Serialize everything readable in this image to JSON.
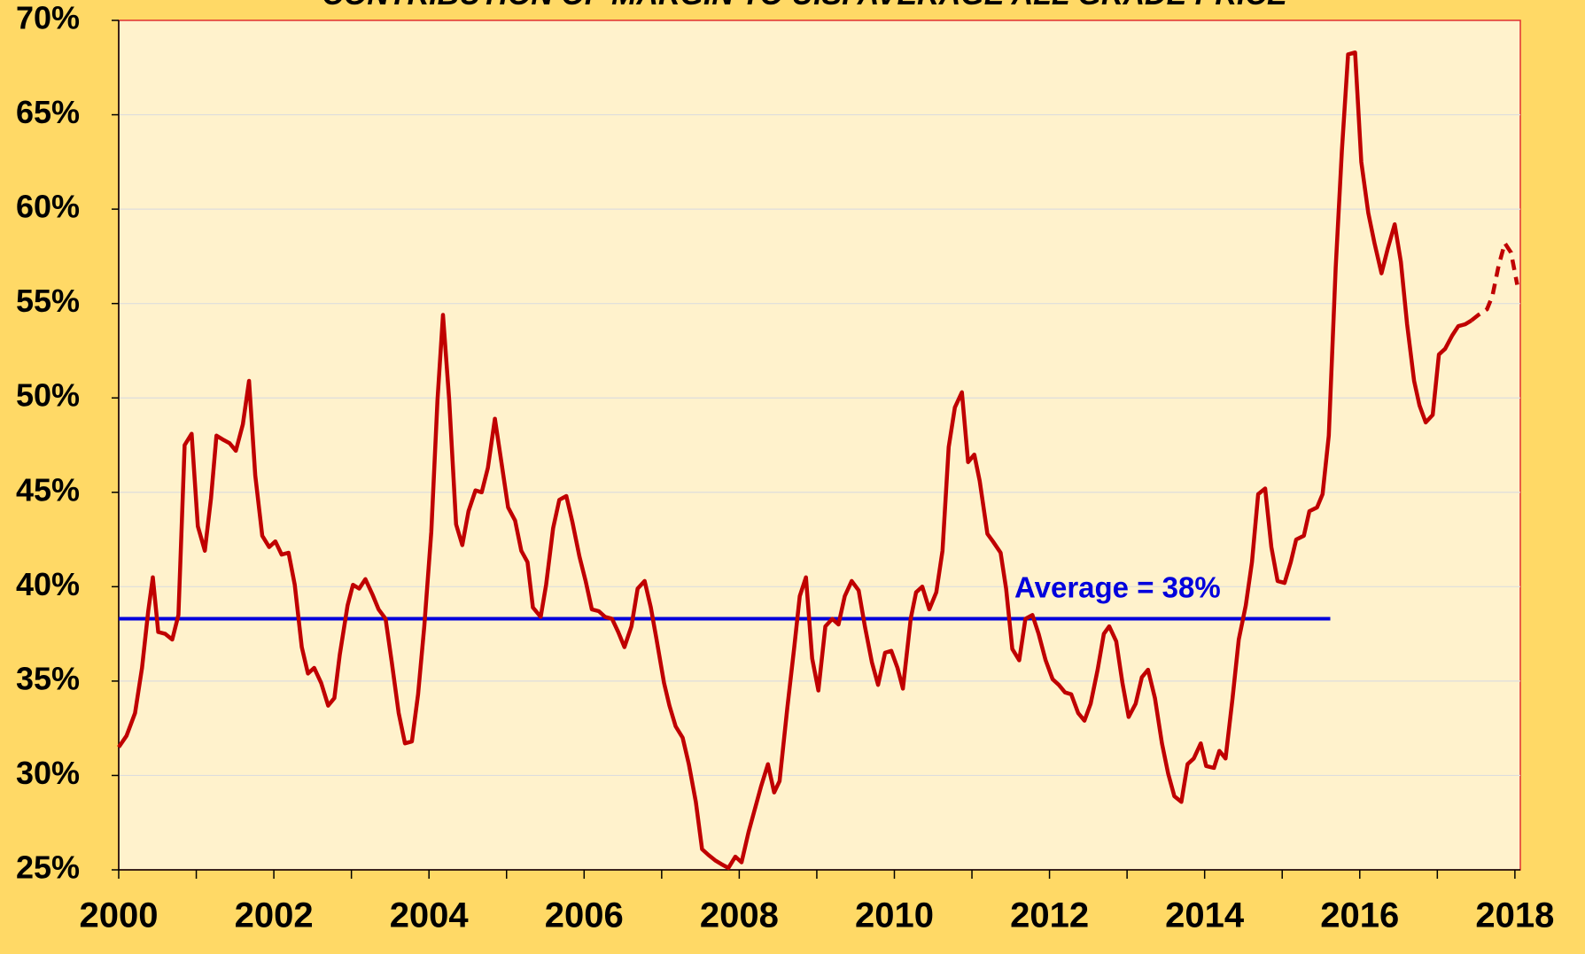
{
  "chart_data": {
    "type": "line",
    "title": "CONTRIBUTION OF MARGIN TO U.S. AVERAGE ALL GRADE PRICE",
    "xlim": [
      2000,
      2018.07
    ],
    "xticks": [
      2000,
      2002,
      2004,
      2006,
      2008,
      2010,
      2012,
      2014,
      2016,
      2018
    ],
    "xminorticks": [
      2001,
      2003,
      2005,
      2007,
      2009,
      2011,
      2013,
      2015,
      2017
    ],
    "ylim": [
      25,
      70
    ],
    "yticks": [
      {
        "value": 25,
        "label": "25%"
      },
      {
        "value": 30,
        "label": "30%"
      },
      {
        "value": 35,
        "label": "35%"
      },
      {
        "value": 40,
        "label": "40%"
      },
      {
        "value": 45,
        "label": "45%"
      },
      {
        "value": 50,
        "label": "50%"
      },
      {
        "value": 55,
        "label": "55%"
      },
      {
        "value": 60,
        "label": "60%"
      },
      {
        "value": 65,
        "label": "65%"
      },
      {
        "value": 70,
        "label": "70%"
      }
    ],
    "grid": true,
    "series": [
      {
        "color": "#c00000",
        "dashed": false,
        "x": [
          2000.0,
          2000.1,
          2000.21,
          2000.3,
          2000.38,
          2000.44,
          2000.51,
          2000.6,
          2000.69,
          2000.77,
          2000.85,
          2000.94,
          2001.02,
          2001.11,
          2001.19,
          2001.26,
          2001.34,
          2001.43,
          2001.51,
          2001.6,
          2001.68,
          2001.76,
          2001.85,
          2001.94,
          2002.02,
          2002.1,
          2002.19,
          2002.27,
          2002.36,
          2002.44,
          2002.52,
          2002.61,
          2002.7,
          2002.78,
          2002.85,
          2002.95,
          2003.02,
          2003.1,
          2003.18,
          2003.27,
          2003.35,
          2003.44,
          2003.52,
          2003.61,
          2003.69,
          2003.78,
          2003.86,
          2003.94,
          2004.03,
          2004.11,
          2004.18,
          2004.26,
          2004.35,
          2004.43,
          2004.51,
          2004.6,
          2004.68,
          2004.76,
          2004.85,
          2004.93,
          2005.02,
          2005.11,
          2005.19,
          2005.27,
          2005.34,
          2005.44,
          2005.51,
          2005.6,
          2005.68,
          2005.77,
          2005.85,
          2005.94,
          2006.02,
          2006.1,
          2006.19,
          2006.27,
          2006.36,
          2006.44,
          2006.52,
          2006.61,
          2006.69,
          2006.78,
          2006.86,
          2006.93,
          2007.03,
          2007.1,
          2007.18,
          2007.27,
          2007.35,
          2007.44,
          2007.52,
          2007.6,
          2007.69,
          2007.77,
          2007.86,
          2007.95,
          2008.03,
          2008.12,
          2008.2,
          2008.28,
          2008.37,
          2008.45,
          2008.52,
          2008.62,
          2008.71,
          2008.78,
          2008.86,
          2008.94,
          2009.02,
          2009.11,
          2009.2,
          2009.28,
          2009.36,
          2009.45,
          2009.54,
          2009.62,
          2009.71,
          2009.79,
          2009.88,
          2009.96,
          2010.04,
          2010.11,
          2010.21,
          2010.28,
          2010.36,
          2010.45,
          2010.54,
          2010.62,
          2010.7,
          2010.78,
          2010.87,
          2010.95,
          2011.03,
          2011.1,
          2011.2,
          2011.27,
          2011.37,
          2011.44,
          2011.52,
          2011.61,
          2011.69,
          2011.78,
          2011.86,
          2011.95,
          2012.04,
          2012.12,
          2012.2,
          2012.28,
          2012.37,
          2012.45,
          2012.53,
          2012.62,
          2012.7,
          2012.77,
          2012.86,
          2012.94,
          2013.02,
          2013.11,
          2013.19,
          2013.27,
          2013.36,
          2013.45,
          2013.53,
          2013.61,
          2013.7,
          2013.78,
          2013.86,
          2013.95,
          2014.02,
          2014.12,
          2014.19,
          2014.27,
          2014.36,
          2014.44,
          2014.53,
          2014.61,
          2014.69,
          2014.78,
          2014.86,
          2014.94,
          2015.03,
          2015.11,
          2015.18,
          2015.28,
          2015.35,
          2015.45,
          2015.52,
          2015.6,
          2015.69,
          2015.77,
          2015.85,
          2015.94,
          2016.02,
          2016.11,
          2016.19,
          2016.28,
          2016.36,
          2016.45,
          2016.53,
          2016.61,
          2016.7,
          2016.77,
          2016.85,
          2016.94,
          2017.02,
          2017.1,
          2017.19,
          2017.27,
          2017.36,
          2017.44
        ],
        "values": [
          31.5,
          32.1,
          33.3,
          35.7,
          38.7,
          40.5,
          37.6,
          37.5,
          37.2,
          38.5,
          47.5,
          48.1,
          43.2,
          41.9,
          44.7,
          48.0,
          47.8,
          47.6,
          47.2,
          48.6,
          50.9,
          45.9,
          42.7,
          42.1,
          42.4,
          41.7,
          41.8,
          40.1,
          36.8,
          35.4,
          35.7,
          34.9,
          33.7,
          34.1,
          36.4,
          39.0,
          40.1,
          39.9,
          40.4,
          39.6,
          38.8,
          38.3,
          36.0,
          33.3,
          31.7,
          31.8,
          34.3,
          37.9,
          42.9,
          49.9,
          54.4,
          49.9,
          43.3,
          42.2,
          44.0,
          45.1,
          45.0,
          46.3,
          48.9,
          46.7,
          44.2,
          43.5,
          41.9,
          41.3,
          38.9,
          38.4,
          40.1,
          43.1,
          44.6,
          44.8,
          43.4,
          41.6,
          40.3,
          38.8,
          38.7,
          38.4,
          38.3,
          37.6,
          36.8,
          37.9,
          39.9,
          40.3,
          38.9,
          37.3,
          34.9,
          33.7,
          32.6,
          32.0,
          30.6,
          28.6,
          26.1,
          25.8,
          25.5,
          25.3,
          25.1,
          25.7,
          25.4,
          27.0,
          28.2,
          29.4,
          30.6,
          29.1,
          29.7,
          33.6,
          36.8,
          39.5,
          40.5,
          36.2,
          34.5,
          37.9,
          38.3,
          38.0,
          39.5,
          40.3,
          39.8,
          37.9,
          36.0,
          34.8,
          36.5,
          36.6,
          35.7,
          34.6,
          38.3,
          39.7,
          40.0,
          38.8,
          39.7,
          41.9,
          47.4,
          49.5,
          50.3,
          46.6,
          47.0,
          45.6,
          42.8,
          42.4,
          41.8,
          39.9,
          36.7,
          36.1,
          38.3,
          38.5,
          37.5,
          36.1,
          35.1,
          34.8,
          34.4,
          34.3,
          33.3,
          32.9,
          33.8,
          35.6,
          37.5,
          37.9,
          37.1,
          34.9,
          33.1,
          33.8,
          35.2,
          35.6,
          34.1,
          31.7,
          30.1,
          28.9,
          28.6,
          30.6,
          30.9,
          31.7,
          30.5,
          30.4,
          31.3,
          30.9,
          34.1,
          37.2,
          39.0,
          41.3,
          44.9,
          45.2,
          42.1,
          40.3,
          40.2,
          41.3,
          42.5,
          42.7,
          44.0,
          44.2,
          44.9,
          48.0,
          56.9,
          63.1,
          68.2,
          68.3,
          62.5,
          59.8,
          58.2,
          56.6,
          57.9,
          59.2,
          57.2,
          53.9,
          50.9,
          49.6,
          48.7,
          49.1,
          52.3,
          52.6,
          53.3,
          53.8,
          53.9,
          54.1
        ]
      },
      {
        "color": "#c00000",
        "dashed": true,
        "x": [
          2017.44,
          2017.53,
          2017.64,
          2017.71,
          2017.79,
          2017.87,
          2017.95,
          2018.03
        ],
        "values": [
          54.1,
          54.4,
          54.7,
          55.4,
          57.0,
          58.2,
          57.7,
          56.0
        ]
      }
    ],
    "average": {
      "value": 38.3,
      "x": [
        2000,
        2015.62
      ],
      "color": "#0000dd",
      "label": "Average = 38%"
    }
  }
}
